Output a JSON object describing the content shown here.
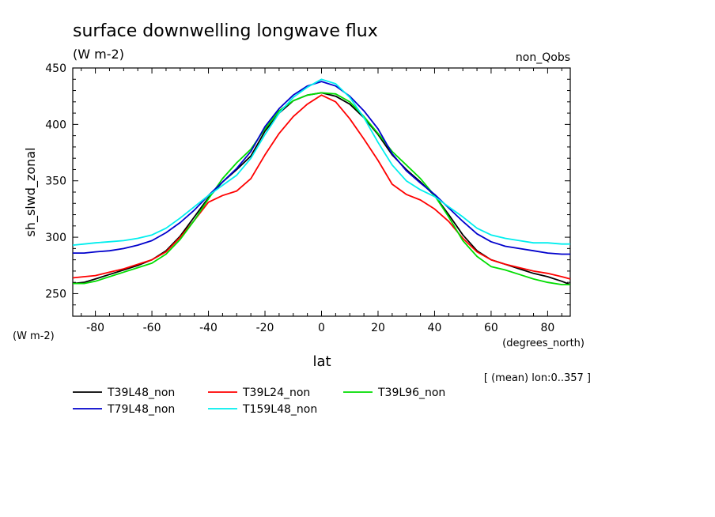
{
  "chart_data": {
    "type": "line",
    "title": "surface downwelling longwave flux",
    "subtitle": "(W m-2)",
    "experiment": "non_Qobs",
    "ylabel": "sh_slwd_zonal",
    "ylabel_units": "(W m-2)",
    "xlabel": "lat",
    "xlabel_units": "(degrees_north)",
    "annotation": "[ (mean) lon:0..357 ]",
    "xlim": [
      -88,
      88
    ],
    "ylim": [
      230,
      450
    ],
    "xticks": [
      -80,
      -60,
      -40,
      -20,
      0,
      20,
      40,
      60,
      80
    ],
    "xtick_labels": [
      "-80",
      "-60",
      "-40",
      "-20",
      "0",
      "20",
      "40",
      "60",
      "80"
    ],
    "yticks": [
      250,
      300,
      350,
      400,
      450
    ],
    "ytick_labels": [
      "250",
      "300",
      "350",
      "400",
      "450"
    ],
    "grid": false,
    "legend_position": "bottom-left",
    "x": [
      -88,
      -84,
      -80,
      -75,
      -70,
      -65,
      -60,
      -55,
      -50,
      -45,
      -40,
      -35,
      -30,
      -25,
      -20,
      -15,
      -10,
      -5,
      0,
      5,
      10,
      15,
      20,
      25,
      30,
      35,
      40,
      45,
      50,
      55,
      60,
      65,
      70,
      75,
      80,
      85,
      88
    ],
    "series": [
      {
        "name": "T39L48_non",
        "color": "#000000",
        "values": [
          259,
          260,
          263,
          267,
          271,
          275,
          280,
          288,
          301,
          318,
          335,
          349,
          360,
          372,
          394,
          410,
          421,
          426,
          428,
          425,
          418,
          406,
          391,
          373,
          360,
          349,
          337,
          320,
          302,
          288,
          280,
          276,
          272,
          268,
          265,
          261,
          258
        ]
      },
      {
        "name": "T39L24_non",
        "color": "#ff0000",
        "values": [
          264,
          265,
          266,
          269,
          272,
          276,
          280,
          287,
          300,
          315,
          331,
          337,
          341,
          352,
          373,
          392,
          407,
          418,
          426,
          420,
          405,
          387,
          368,
          347,
          338,
          333,
          325,
          314,
          299,
          287,
          280,
          276,
          273,
          270,
          268,
          265,
          263
        ]
      },
      {
        "name": "T39L96_non",
        "color": "#00dd00",
        "values": [
          259,
          259,
          261,
          265,
          269,
          273,
          277,
          285,
          298,
          315,
          334,
          352,
          366,
          378,
          396,
          412,
          421,
          426,
          428,
          427,
          420,
          407,
          392,
          376,
          364,
          352,
          337,
          318,
          297,
          283,
          274,
          271,
          267,
          263,
          260,
          258,
          258
        ]
      },
      {
        "name": "T79L48_non",
        "color": "#0000cc",
        "values": [
          286,
          286,
          287,
          288,
          290,
          293,
          297,
          304,
          313,
          324,
          337,
          349,
          361,
          376,
          398,
          414,
          426,
          434,
          438,
          434,
          425,
          412,
          396,
          374,
          359,
          348,
          338,
          326,
          314,
          303,
          296,
          292,
          290,
          288,
          286,
          285,
          285
        ]
      },
      {
        "name": "T159L48_non",
        "color": "#00eeee",
        "values": [
          293,
          294,
          295,
          296,
          297,
          299,
          302,
          308,
          317,
          327,
          337,
          346,
          355,
          370,
          391,
          410,
          424,
          433,
          440,
          436,
          424,
          406,
          384,
          364,
          350,
          342,
          336,
          327,
          318,
          308,
          302,
          299,
          297,
          295,
          295,
          294,
          294
        ]
      }
    ]
  }
}
